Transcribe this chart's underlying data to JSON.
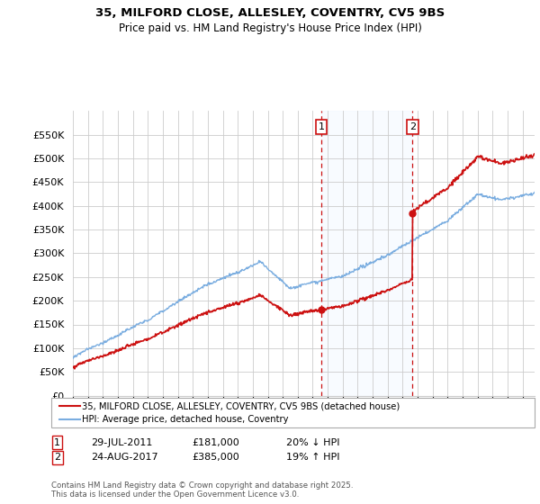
{
  "title_line1": "35, MILFORD CLOSE, ALLESLEY, COVENTRY, CV5 9BS",
  "title_line2": "Price paid vs. HM Land Registry's House Price Index (HPI)",
  "ylabel_ticks": [
    "£0",
    "£50K",
    "£100K",
    "£150K",
    "£200K",
    "£250K",
    "£300K",
    "£350K",
    "£400K",
    "£450K",
    "£500K",
    "£550K"
  ],
  "ytick_values": [
    0,
    50000,
    100000,
    150000,
    200000,
    250000,
    300000,
    350000,
    400000,
    450000,
    500000,
    550000
  ],
  "ylim": [
    0,
    600000
  ],
  "xlim_start": 1995.0,
  "xlim_end": 2025.8,
  "sale1_date": 2011.57,
  "sale1_price": 181000,
  "sale2_date": 2017.65,
  "sale2_price": 385000,
  "hpi_color": "#7aade0",
  "property_color": "#cc1111",
  "vline_color": "#cc1111",
  "shaded_region_color": "#ddeeff",
  "legend_label1": "35, MILFORD CLOSE, ALLESLEY, COVENTRY, CV5 9BS (detached house)",
  "legend_label2": "HPI: Average price, detached house, Coventry",
  "annotation1_date": "29-JUL-2011",
  "annotation1_price": "£181,000",
  "annotation1_note": "20% ↓ HPI",
  "annotation2_date": "24-AUG-2017",
  "annotation2_price": "£385,000",
  "annotation2_note": "19% ↑ HPI",
  "footnote": "Contains HM Land Registry data © Crown copyright and database right 2025.\nThis data is licensed under the Open Government Licence v3.0.",
  "background_color": "#ffffff",
  "grid_color": "#cccccc"
}
